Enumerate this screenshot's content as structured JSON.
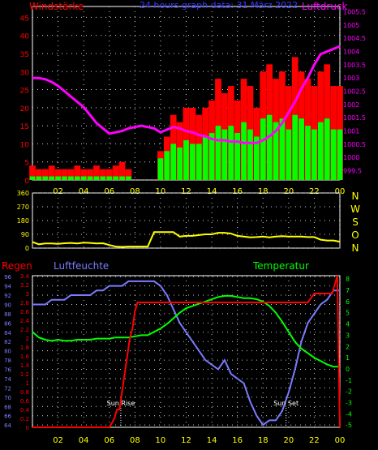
{
  "colors": {
    "background": "#000000",
    "frame": "#ffffff",
    "grid": "#cfcfcf",
    "wind_speed": "#ff0000",
    "wind_gust_fill": "#00ff00",
    "wind_dark": "#006400",
    "pressure": "#ff00ff",
    "direction": "#ffff00",
    "rain": "#ff0000",
    "humidity": "#7b7bff",
    "temperature": "#00ff00",
    "tick_yellow": "#ffff00",
    "title_blue": "#3a3aff"
  },
  "chart_data": [
    {
      "type": "area",
      "title": "24 hours graph data: 31 März 2022",
      "left_axis_label": "Windstärke",
      "right_axis_label": "Luftdruck",
      "x_ticks": [
        "02",
        "04",
        "06",
        "08",
        "10",
        "12",
        "14",
        "16",
        "18",
        "20",
        "22",
        "00"
      ],
      "y_left_ticks": [
        "0",
        "5",
        "10",
        "15",
        "20",
        "25",
        "30",
        "35",
        "40",
        "45"
      ],
      "y_left_range": [
        0,
        48
      ],
      "y_right_ticks": [
        "999.5",
        "1000",
        "1000.5",
        "1001",
        "1001.5",
        "1002",
        "1002.5",
        "1003",
        "1003.5",
        "1004",
        "1004.5",
        "1005",
        "1005.5"
      ],
      "y_right_range": [
        999.15,
        1005.7
      ],
      "x_range_hours": [
        0,
        24
      ],
      "series": [
        {
          "kind": "wind_speed",
          "x": [
            0,
            0.5,
            1,
            1.5,
            2,
            2.5,
            3,
            3.5,
            4,
            4.5,
            5,
            5.5,
            6,
            6.5,
            7,
            7.5,
            8,
            8.5,
            9,
            9.5,
            10,
            10.5,
            11,
            11.5,
            12,
            12.5,
            13,
            13.5,
            14,
            14.5,
            15,
            15.5,
            16,
            16.5,
            17,
            17.5,
            18,
            18.5,
            19,
            19.5,
            20,
            20.5,
            21,
            21.5,
            22,
            22.5,
            23,
            23.5,
            24
          ],
          "values": [
            4,
            3,
            3,
            4,
            3,
            3,
            3,
            4,
            3,
            3,
            4,
            3,
            3,
            4,
            5,
            3,
            0,
            0,
            0,
            0,
            8,
            12,
            18,
            16,
            20,
            20,
            18,
            20,
            22,
            28,
            24,
            26,
            22,
            28,
            26,
            20,
            30,
            32,
            28,
            30,
            26,
            34,
            30,
            28,
            26,
            30,
            32,
            26,
            26
          ]
        },
        {
          "kind": "wind_gust_fill",
          "x": [
            0,
            0.5,
            1,
            1.5,
            2,
            2.5,
            3,
            3.5,
            4,
            4.5,
            5,
            5.5,
            6,
            6.5,
            7,
            7.5,
            8,
            8.5,
            9,
            9.5,
            10,
            10.5,
            11,
            11.5,
            12,
            12.5,
            13,
            13.5,
            14,
            14.5,
            15,
            15.5,
            16,
            16.5,
            17,
            17.5,
            18,
            18.5,
            19,
            19.5,
            20,
            20.5,
            21,
            21.5,
            22,
            22.5,
            23,
            23.5,
            24
          ],
          "values": [
            1,
            1,
            1,
            1,
            1,
            1,
            1,
            1,
            1,
            1,
            1,
            1,
            1,
            1,
            1,
            1,
            0,
            0,
            0,
            0,
            6,
            8,
            10,
            9,
            11,
            10,
            10,
            12,
            13,
            15,
            14,
            15,
            13,
            16,
            14,
            12,
            17,
            18,
            16,
            17,
            14,
            18,
            17,
            15,
            14,
            16,
            17,
            14,
            14
          ]
        },
        {
          "kind": "pressure",
          "x": [
            0,
            0.5,
            1,
            1.5,
            2,
            2.5,
            3,
            3.5,
            4,
            4.5,
            5,
            5.5,
            6,
            6.5,
            7,
            7.5,
            8,
            8.5,
            9,
            9.5,
            10,
            10.5,
            11,
            11.5,
            12,
            12.5,
            13,
            13.5,
            14,
            14.5,
            15,
            15.5,
            16,
            16.5,
            17,
            17.5,
            18,
            18.5,
            19,
            19.5,
            20,
            20.5,
            21,
            21.5,
            22,
            22.5,
            23,
            23.5,
            24
          ],
          "values": [
            1003,
            1003,
            1002.95,
            1002.85,
            1002.7,
            1002.5,
            1002.3,
            1002.1,
            1001.9,
            1001.6,
            1001.3,
            1001.1,
            1000.9,
            1000.95,
            1001.0,
            1001.1,
            1001.15,
            1001.2,
            1001.15,
            1001.1,
            1000.95,
            1001.05,
            1001.15,
            1001.1,
            1001.0,
            1000.95,
            1000.85,
            1000.8,
            1000.7,
            1000.65,
            1000.65,
            1000.6,
            1000.6,
            1000.55,
            1000.55,
            1000.55,
            1000.65,
            1000.8,
            1001.0,
            1001.3,
            1001.7,
            1002.1,
            1002.6,
            1003.0,
            1003.5,
            1003.9,
            1004.0,
            1004.1,
            1004.2
          ]
        }
      ]
    },
    {
      "type": "line",
      "right_axis_letters": [
        "N",
        "W",
        "S",
        "O",
        "N"
      ],
      "y_ticks": [
        "0",
        "90",
        "180",
        "270",
        "360"
      ],
      "y_range": [
        0,
        360
      ],
      "x_range_hours": [
        0,
        24
      ],
      "series": [
        {
          "kind": "direction",
          "x": [
            0,
            0.5,
            1,
            1.5,
            2,
            2.5,
            3,
            3.5,
            4,
            4.5,
            5,
            5.5,
            6,
            6.5,
            7,
            7.5,
            8,
            8.5,
            9,
            9.5,
            10,
            10.5,
            11,
            11.5,
            12,
            12.5,
            13,
            13.5,
            14,
            14.5,
            15,
            15.5,
            16,
            16.5,
            17,
            17.5,
            18,
            18.5,
            19,
            19.5,
            20,
            20.5,
            21,
            21.5,
            22,
            22.5,
            23,
            23.5,
            24
          ],
          "values": [
            40,
            25,
            30,
            30,
            28,
            32,
            34,
            30,
            36,
            34,
            30,
            32,
            20,
            10,
            8,
            10,
            10,
            10,
            10,
            105,
            105,
            105,
            105,
            75,
            80,
            80,
            85,
            90,
            90,
            100,
            100,
            95,
            80,
            75,
            70,
            72,
            75,
            70,
            75,
            78,
            75,
            75,
            75,
            72,
            72,
            55,
            50,
            50,
            42
          ]
        }
      ]
    },
    {
      "type": "line",
      "labels": {
        "rain": "Regen",
        "humidity": "Luftfeuchte",
        "temperature": "Temperatur",
        "sunrise": "Sun Rise",
        "sunset": "Sun Set"
      },
      "rain_ticks": [
        "0",
        "0.2",
        "0.4",
        "0.6",
        "0.8",
        "1",
        "1.2",
        "1.4",
        "1.6",
        "1.8",
        "2",
        "2.2",
        "2.4",
        "2.6",
        "2.8",
        "3",
        "3.2",
        "3.4"
      ],
      "rain_range": [
        0,
        3.4
      ],
      "humidity_ticks": [
        "64",
        "66",
        "68",
        "70",
        "72",
        "74",
        "76",
        "78",
        "80",
        "82",
        "84",
        "86",
        "88",
        "90",
        "92",
        "94",
        "96"
      ],
      "humidity_range": [
        63.5,
        96.2
      ],
      "temperature_ticks": [
        "-5",
        "-4",
        "-3",
        "-2",
        "-1",
        "0",
        "1",
        "2",
        "3",
        "4",
        "5",
        "6",
        "7",
        "8"
      ],
      "temperature_range": [
        -5.2,
        8.3
      ],
      "sunrise_hour": 6.9,
      "sunset_hour": 19.8,
      "series": [
        {
          "kind": "rain",
          "x": [
            0,
            6,
            6.4,
            6.6,
            6.8,
            7.0,
            7.2,
            7.4,
            7.6,
            7.8,
            8.0,
            8.2,
            8.4,
            8.6,
            9.0,
            10,
            14,
            18,
            20,
            21.5,
            22,
            22.5,
            23,
            23.4,
            23.6,
            23.8,
            24
          ],
          "values": [
            0,
            0,
            0.2,
            0.4,
            0.4,
            0.8,
            1.2,
            1.6,
            2.0,
            2.2,
            2.6,
            2.8,
            2.8,
            2.8,
            2.8,
            2.8,
            2.8,
            2.8,
            2.8,
            2.8,
            3.0,
            3.0,
            3.0,
            3.0,
            3.2,
            3.4,
            0
          ]
        },
        {
          "kind": "humidity",
          "x": [
            0,
            0.5,
            1,
            1.5,
            2,
            2.5,
            3,
            3.5,
            4,
            4.5,
            5,
            5.5,
            6,
            6.5,
            7,
            7.5,
            8,
            8.5,
            9,
            9.5,
            10,
            10.5,
            11,
            11.5,
            12,
            12.5,
            13,
            13.5,
            14,
            14.5,
            15,
            15.5,
            16,
            16.5,
            17,
            17.5,
            18,
            18.5,
            19,
            19.5,
            20,
            20.5,
            21,
            21.5,
            22,
            22.5,
            23,
            23.5,
            24
          ],
          "values": [
            90,
            90,
            90,
            91,
            91,
            91,
            92,
            92,
            92,
            92,
            93,
            93,
            94,
            94,
            94,
            95,
            95,
            95,
            95,
            95,
            94,
            92,
            89,
            86,
            84,
            82,
            80,
            78,
            77,
            76,
            78,
            75,
            74,
            73,
            69,
            66,
            64,
            65,
            65,
            67,
            71,
            76,
            82,
            86,
            88,
            90,
            91,
            93,
            93
          ]
        },
        {
          "kind": "temperature",
          "x": [
            0,
            0.5,
            1,
            1.5,
            2,
            2.5,
            3,
            3.5,
            4,
            4.5,
            5,
            5.5,
            6,
            6.5,
            7,
            7.5,
            8,
            8.5,
            9,
            9.5,
            10,
            10.5,
            11,
            11.5,
            12,
            12.5,
            13,
            13.5,
            14,
            14.5,
            15,
            15.5,
            16,
            16.5,
            17,
            17.5,
            18,
            18.5,
            19,
            19.5,
            20,
            20.5,
            21,
            21.5,
            22,
            22.5,
            23,
            23.5,
            24
          ],
          "values": [
            3.3,
            2.8,
            2.6,
            2.5,
            2.6,
            2.5,
            2.5,
            2.6,
            2.6,
            2.6,
            2.7,
            2.7,
            2.7,
            2.8,
            2.8,
            2.8,
            2.9,
            3.0,
            3.0,
            3.3,
            3.6,
            4.0,
            4.5,
            5.0,
            5.4,
            5.6,
            5.8,
            6.0,
            6.2,
            6.4,
            6.5,
            6.5,
            6.4,
            6.3,
            6.3,
            6.2,
            6.0,
            5.6,
            5.0,
            4.2,
            3.3,
            2.4,
            1.8,
            1.4,
            1.0,
            0.7,
            0.4,
            0.2,
            0.2
          ]
        }
      ]
    }
  ]
}
